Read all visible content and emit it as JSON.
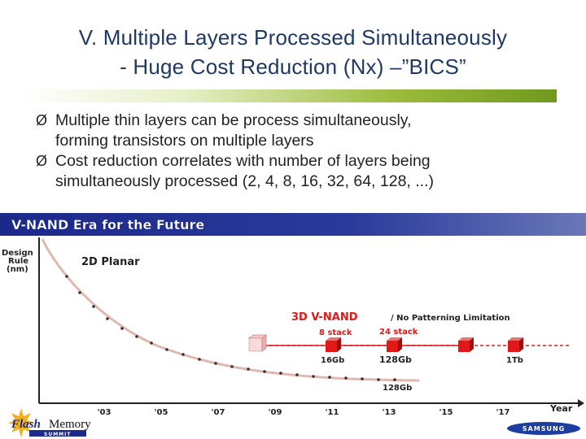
{
  "title": {
    "line1": "V. Multiple Layers Processed Simultaneously",
    "line2": "- Huge Cost Reduction (Nx) –”BICS”"
  },
  "bullets": [
    {
      "line1": "Multiple thin layers can be process simultaneously,",
      "line2": "forming transistors on multiple layers"
    },
    {
      "line1": "Cost reduction correlates with number of layers being",
      "line2": "simultaneously processed (2, 4, 8, 16, 32, 64, 128, ...)"
    }
  ],
  "banner": {
    "title": "V-NAND Era for the Future"
  },
  "labels": {
    "y_axis": [
      "Design",
      "Rule",
      "(nm)"
    ],
    "planar": "2D Planar",
    "vnand": "3D V-NAND",
    "vnand_note": "/ No Patterning Limitation",
    "stack8": "8 stack",
    "stack24": "24 stack",
    "cap16": "16Gb",
    "cap128a": "128Gb",
    "cap1t": "1Tb",
    "cap128b": "128Gb",
    "year_axis": "Year"
  },
  "footer": {
    "logo_word1": "Flash",
    "logo_word2": "Memory",
    "logo_sub": "SUMMIT",
    "brand": "SAMSUNG"
  },
  "colors": {
    "title": "#1f3864",
    "banner": "#1b2a8a",
    "curve": "#e0b8b0",
    "accent_red": "#e01818"
  },
  "chart_data": {
    "type": "line",
    "title": "V-NAND Era for the Future",
    "ylabel": "Design Rule (nm)",
    "xlabel": "Year",
    "categories": [
      "'03",
      "'05",
      "'07",
      "'09",
      "'11",
      "'13",
      "'15",
      "'17"
    ],
    "series": [
      {
        "name": "2D Planar",
        "values": [
          9.5,
          7.2,
          5.4,
          3.9,
          2.9,
          2.1,
          null,
          null
        ]
      },
      {
        "name": "3D V-NAND",
        "values": [
          null,
          null,
          null,
          2.5,
          2.5,
          2.5,
          2.5,
          2.5
        ]
      }
    ],
    "annotations": [
      "8 stack",
      "24 stack",
      "16Gb",
      "128Gb",
      "1Tb",
      "128Gb"
    ]
  }
}
